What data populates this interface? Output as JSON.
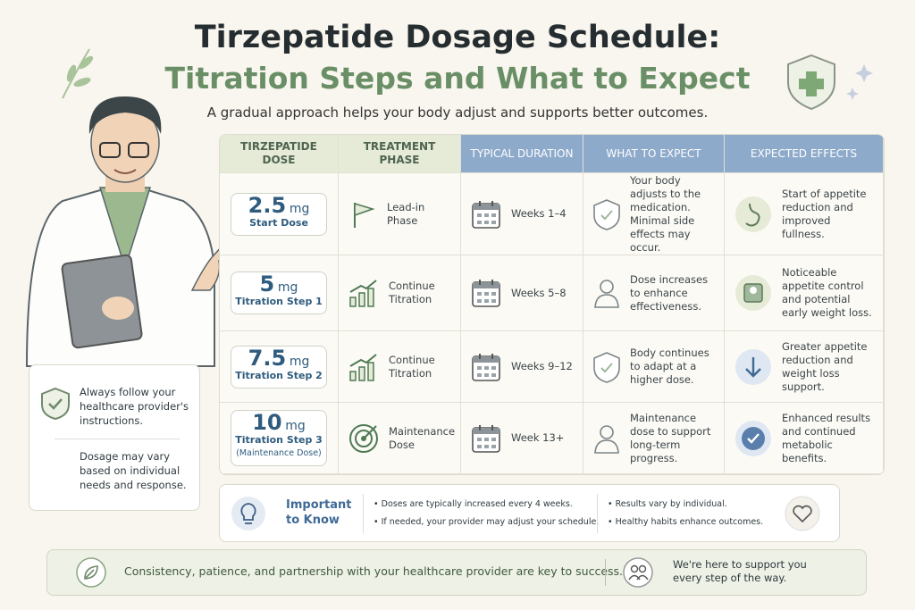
{
  "header": {
    "title_line1": "Tirzepatide Dosage Schedule:",
    "title_line2": "Titration Steps and What to Expect",
    "subtitle": "A gradual approach helps your body adjust and supports better outcomes."
  },
  "table": {
    "columns": [
      "TIRZEPATIDE DOSE",
      "TREATMENT PHASE",
      "TYPICAL DURATION",
      "WHAT TO EXPECT",
      "EXPECTED EFFECTS"
    ],
    "rows": [
      {
        "dose": "2.5",
        "unit": "mg",
        "step": "Start Dose",
        "phase": "Lead-in Phase",
        "duration": "Weeks 1–4",
        "expect": "Your body adjusts to the medication. Minimal side effects may occur.",
        "effects": "Start of appetite reduction and improved fullness."
      },
      {
        "dose": "5",
        "unit": "mg",
        "step": "Titration Step 1",
        "phase": "Continue Titration",
        "duration": "Weeks 5–8",
        "expect": "Dose increases to enhance effectiveness.",
        "effects": "Noticeable appetite control and potential early weight loss."
      },
      {
        "dose": "7.5",
        "unit": "mg",
        "step": "Titration Step 2",
        "phase": "Continue Titration",
        "duration": "Weeks 9–12",
        "expect": "Body continues to adapt at a higher dose.",
        "effects": "Greater appetite reduction and weight loss support."
      },
      {
        "dose": "10",
        "unit": "mg",
        "step": "Titration Step 3",
        "note": "(Maintenance Dose)",
        "phase": "Maintenance Dose",
        "duration": "Week 13+",
        "expect": "Maintenance dose to support long-term progress.",
        "effects": "Enhanced results and continued metabolic benefits."
      }
    ]
  },
  "side_notes": [
    "Always follow your healthcare provider's instructions.",
    "Dosage may vary based on individual needs and response."
  ],
  "important": {
    "title": "Important to Know",
    "points": [
      "Doses are typically increased every 4 weeks.",
      "If needed, your provider may adjust your schedule.",
      "Results vary by individual.",
      "Healthy habits enhance outcomes."
    ]
  },
  "footer": {
    "message": "Consistency, patience, and partnership with your healthcare provider are key to success.",
    "support": "We're here to support you every step of the way."
  }
}
